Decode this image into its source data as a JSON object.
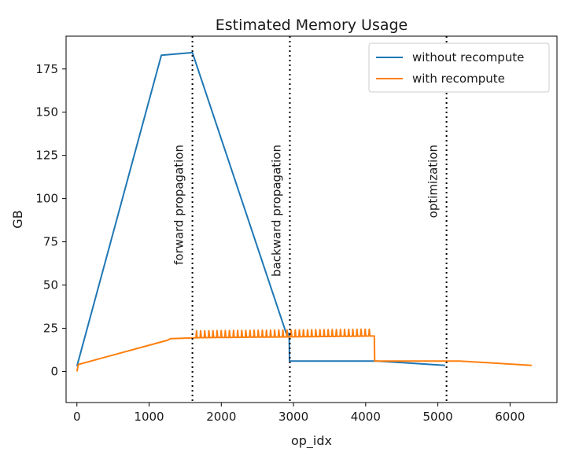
{
  "chart_data": {
    "type": "line",
    "title": "Estimated Memory Usage",
    "xlabel": "op_idx",
    "ylabel": "GB",
    "xlim": [
      -150,
      6650
    ],
    "ylim": [
      -18,
      194
    ],
    "xticks": [
      0,
      1000,
      2000,
      3000,
      4000,
      5000,
      6000
    ],
    "yticks": [
      0,
      25,
      50,
      75,
      100,
      125,
      150,
      175
    ],
    "grid": false,
    "legend_position": "top-right",
    "colors": {
      "without_recompute": "#1f77b4",
      "with_recompute": "#ff7f0e",
      "vlines": "#000000"
    },
    "series": [
      {
        "name": "without recompute",
        "color": "#1f77b4",
        "points": [
          [
            0,
            3
          ],
          [
            20,
            6
          ],
          [
            1170,
            183
          ],
          [
            1600,
            184.5
          ],
          [
            2900,
            22
          ],
          [
            2940,
            22
          ],
          [
            2945,
            6
          ],
          [
            4150,
            6
          ],
          [
            5100,
            3.5
          ]
        ]
      },
      {
        "name": "with recompute",
        "color": "#ff7f0e",
        "points": [
          [
            0,
            0
          ],
          [
            20,
            4
          ],
          [
            1250,
            18
          ],
          [
            1300,
            19
          ],
          [
            1650,
            19.5
          ],
          [
            2950,
            20
          ],
          [
            4120,
            20.5
          ],
          [
            4125,
            6
          ],
          [
            5300,
            6
          ],
          [
            5700,
            5
          ],
          [
            6300,
            3.5
          ]
        ],
        "spikes": {
          "from": 1650,
          "to": 4100,
          "count": 43,
          "amplitude": 4
        }
      }
    ],
    "vlines": [
      {
        "x": 1600,
        "label": "forward propagation"
      },
      {
        "x": 2950,
        "label": "backward propagation"
      },
      {
        "x": 5120,
        "label": "optimization"
      }
    ]
  }
}
